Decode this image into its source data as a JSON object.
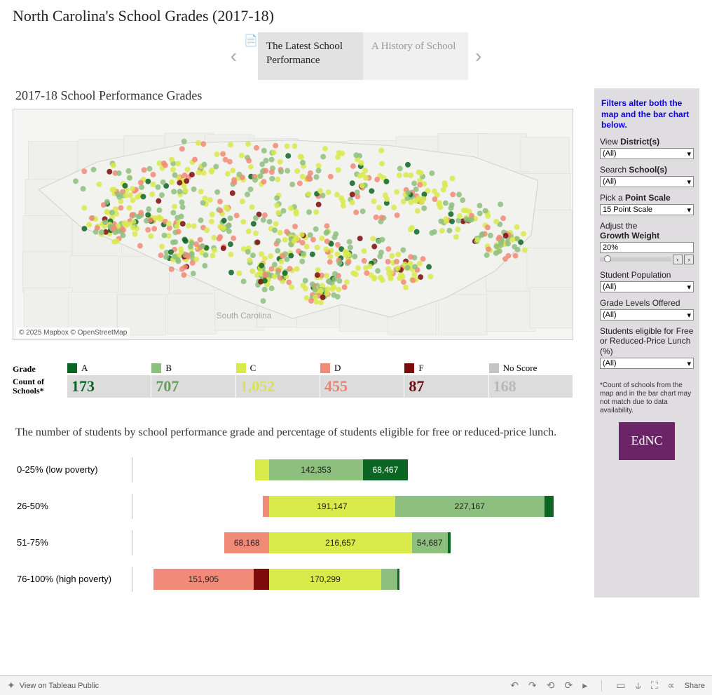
{
  "page_title": "North Carolina's School Grades (2017-18)",
  "tabs": {
    "prev_arrow": "‹",
    "next_arrow": "›",
    "active": {
      "label": "The Latest School Performance"
    },
    "inactive": {
      "label": "A History of School"
    }
  },
  "chart_title": "2017-18 School Performance Grades",
  "map": {
    "attribution": "© 2025 Mapbox  © OpenStreetMap",
    "background": "#f5f5f3",
    "border_color": "#d8d8d4",
    "state_label_sc": "South Carolina"
  },
  "grades": {
    "label_grade": "Grade",
    "label_count": "Count of Schools*",
    "items": [
      {
        "key": "A",
        "label": "A",
        "color": "#0b6623",
        "count": "173",
        "count_color": "#0b6623"
      },
      {
        "key": "B",
        "label": "B",
        "color": "#8dbf7e",
        "count": "707",
        "count_color": "#6a9c5f"
      },
      {
        "key": "C",
        "label": "C",
        "color": "#d9ea4b",
        "count": "1,052",
        "count_color": "#d9e05a"
      },
      {
        "key": "D",
        "label": "D",
        "color": "#f28a78",
        "count": "455",
        "count_color": "#e88272"
      },
      {
        "key": "F",
        "label": "F",
        "color": "#7d0b0b",
        "count": "87",
        "count_color": "#6a0a0a"
      },
      {
        "key": "NoScore",
        "label": "No Score",
        "color": "#c4c4c4",
        "count": "168",
        "count_color": "#b8b8b8"
      }
    ]
  },
  "subtext": "The number of students by school performance grade and percentage of students eligible for free or reduced-price lunch.",
  "stacked_bars": {
    "axis_center_percent": 32,
    "scale_max": 650000,
    "rows": [
      {
        "label": "0-25% (low poverty)",
        "segments": [
          {
            "grade": "C",
            "value": 21000,
            "display": "",
            "color": "#d9ea4b",
            "side": "left"
          },
          {
            "grade": "B",
            "value": 142353,
            "display": "142,353",
            "color": "#8dbf7e",
            "side": "right"
          },
          {
            "grade": "A",
            "value": 68467,
            "display": "68,467",
            "text_color": "#ffffff",
            "color": "#0b6623",
            "side": "right"
          }
        ]
      },
      {
        "label": "26-50%",
        "segments": [
          {
            "grade": "D",
            "value": 10000,
            "display": "",
            "color": "#f28a78",
            "side": "left"
          },
          {
            "grade": "C",
            "value": 191147,
            "display": "191,147",
            "color": "#d9ea4b",
            "side": "right"
          },
          {
            "grade": "B",
            "value": 227167,
            "display": "227,167",
            "color": "#8dbf7e",
            "side": "right"
          },
          {
            "grade": "A",
            "value": 14000,
            "display": "",
            "color": "#0b6623",
            "side": "right"
          }
        ]
      },
      {
        "label": "51-75%",
        "segments": [
          {
            "grade": "D",
            "value": 68168,
            "display": "68,168",
            "color": "#f28a78",
            "side": "left"
          },
          {
            "grade": "C",
            "value": 216657,
            "display": "216,657",
            "color": "#d9ea4b",
            "side": "right"
          },
          {
            "grade": "B",
            "value": 54687,
            "display": "54,687",
            "color": "#8dbf7e",
            "side": "right"
          },
          {
            "grade": "A",
            "value": 4000,
            "display": "",
            "color": "#0b6623",
            "side": "right"
          }
        ]
      },
      {
        "label": "76-100% (high poverty)",
        "segments": [
          {
            "grade": "F",
            "value": 24000,
            "display": "",
            "color": "#7d0b0b",
            "side": "left"
          },
          {
            "grade": "D",
            "value": 151905,
            "display": "151,905",
            "color": "#f28a78",
            "side": "left"
          },
          {
            "grade": "C",
            "value": 170299,
            "display": "170,299",
            "color": "#d9ea4b",
            "side": "right"
          },
          {
            "grade": "B",
            "value": 24000,
            "display": "",
            "color": "#8dbf7e",
            "side": "right"
          },
          {
            "grade": "A",
            "value": 4000,
            "display": "",
            "color": "#0b6623",
            "side": "right"
          }
        ]
      }
    ]
  },
  "sidebar": {
    "filters_note_line1": "Filters alter both the",
    "filters_note_line2": "map and the bar chart below.",
    "district": {
      "label_pre": "View ",
      "label_bold": "District(s)",
      "value": "(All)"
    },
    "school": {
      "label_pre": "Search ",
      "label_bold": "School(s)",
      "value": "(All)"
    },
    "point_scale": {
      "label_pre": "Pick a ",
      "label_bold": "Point Scale",
      "value": "15 Point Scale"
    },
    "growth": {
      "label_pre": "Adjust the",
      "label_bold": "Growth Weight",
      "value": "20%",
      "prev": "‹",
      "next": "›"
    },
    "population": {
      "label": "Student Population",
      "value": "(All)"
    },
    "grade_levels": {
      "label": "Grade Levels Offered",
      "value": "(All)"
    },
    "frl": {
      "label": "Students eligible for Free or Reduced-Price Lunch (%)",
      "value": "(All)"
    },
    "footnote": "*Count of schools from the map and in the bar chart may not match due to data availability.",
    "badge": "EdNC"
  },
  "bottom_bar": {
    "view_label": "View on Tableau Public",
    "share_label": "Share"
  },
  "map_points_seed": 2474,
  "colors": {
    "sidebar_bg": "#e0dde0"
  }
}
